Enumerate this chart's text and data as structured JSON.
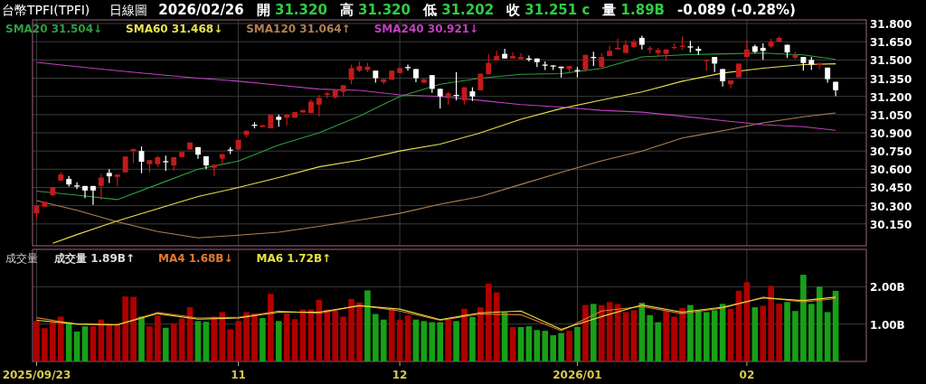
{
  "chart_data": [
    {
      "type": "candlestick",
      "title": "台幣TPFI(TPFI)",
      "subtitle": "日線圖",
      "annotations": [
        "2026/02/26",
        "開 31.320",
        "高 31.320",
        "低 31.202",
        "收 31.251 c",
        "量 1.89B",
        "-0.089 (-0.28%)"
      ],
      "categories": [
        "2025/09/23",
        null,
        null,
        null,
        null,
        null,
        null,
        null,
        null,
        null,
        null,
        null,
        null,
        null,
        null,
        null,
        null,
        null,
        null,
        null,
        null,
        null,
        null,
        null,
        null,
        "11",
        null,
        null,
        null,
        null,
        null,
        null,
        null,
        null,
        null,
        null,
        null,
        null,
        null,
        null,
        null,
        null,
        null,
        null,
        null,
        "12",
        null,
        null,
        null,
        null,
        null,
        null,
        null,
        null,
        null,
        null,
        null,
        null,
        null,
        null,
        null,
        null,
        null,
        null,
        null,
        null,
        null,
        "2026/01",
        null,
        null,
        null,
        null,
        null,
        null,
        null,
        null,
        null,
        null,
        null,
        null,
        null,
        null,
        null,
        null,
        null,
        null,
        null,
        null,
        "02",
        null,
        null,
        null,
        null,
        null,
        null,
        null,
        null,
        null,
        null,
        null
      ],
      "ohlc": [
        [
          30.237,
          30.3,
          30.187,
          30.3
        ],
        [
          30.292,
          30.335,
          30.29,
          30.332
        ],
        [
          30.387,
          30.45,
          30.38,
          30.45
        ],
        [
          30.507,
          30.575,
          30.505,
          30.557
        ],
        [
          30.52,
          30.545,
          30.457,
          30.475
        ],
        [
          30.467,
          30.492,
          30.437,
          30.462
        ],
        [
          30.462,
          30.462,
          30.362,
          30.425
        ],
        [
          30.462,
          30.462,
          30.307,
          30.425
        ],
        [
          30.462,
          30.562,
          30.35,
          30.532
        ],
        [
          30.57,
          30.6,
          30.487,
          30.542
        ],
        [
          30.537,
          30.557,
          30.462,
          30.557
        ],
        [
          30.575,
          30.705,
          30.575,
          30.705
        ],
        [
          30.75,
          30.767,
          30.65,
          30.767
        ],
        [
          30.75,
          30.787,
          30.567,
          30.662
        ],
        [
          30.642,
          30.675,
          30.575,
          30.675
        ],
        [
          30.642,
          30.71,
          30.62,
          30.7
        ],
        [
          30.667,
          30.712,
          30.587,
          30.665
        ],
        [
          30.632,
          30.7,
          30.587,
          30.7
        ],
        [
          30.7,
          30.745,
          30.7,
          30.742
        ],
        [
          30.762,
          30.82,
          30.762,
          30.82
        ],
        [
          30.782,
          30.782,
          30.687,
          30.72
        ],
        [
          30.707,
          30.707,
          30.6,
          30.632
        ],
        [
          30.612,
          30.637,
          30.542,
          30.637
        ],
        [
          30.687,
          30.725,
          30.642,
          30.725
        ],
        [
          30.762,
          30.782,
          30.725,
          30.757
        ],
        [
          30.762,
          30.842,
          30.762,
          30.842
        ],
        [
          30.882,
          30.917,
          30.862,
          30.917
        ],
        [
          30.967,
          30.987,
          30.937,
          30.962
        ],
        [
          30.947,
          30.965,
          30.947,
          30.962
        ],
        [
          30.937,
          31.05,
          30.937,
          31.05
        ],
        [
          31.032,
          31.05,
          30.95,
          31.007
        ],
        [
          31.025,
          31.05,
          30.962,
          31.05
        ],
        [
          31.025,
          31.07,
          31.025,
          31.07
        ],
        [
          31.067,
          31.087,
          31.067,
          31.087
        ],
        [
          31.062,
          31.175,
          31.062,
          31.157
        ],
        [
          31.132,
          31.212,
          31.032,
          31.187
        ],
        [
          31.212,
          31.237,
          31.187,
          31.225
        ],
        [
          31.192,
          31.257,
          31.18,
          31.257
        ],
        [
          31.237,
          31.292,
          31.2,
          31.292
        ],
        [
          31.337,
          31.462,
          31.3,
          31.432
        ],
        [
          31.412,
          31.487,
          31.4,
          31.45
        ],
        [
          31.417,
          31.475,
          31.4,
          31.445
        ],
        [
          31.412,
          31.412,
          31.312,
          31.35
        ],
        [
          31.317,
          31.342,
          31.3,
          31.342
        ],
        [
          31.337,
          31.412,
          31.337,
          31.412
        ],
        [
          31.392,
          31.44,
          31.392,
          31.432
        ],
        [
          31.442,
          31.462,
          31.412,
          31.44
        ],
        [
          31.425,
          31.425,
          31.317,
          31.35
        ],
        [
          31.312,
          31.342,
          31.312,
          31.342
        ],
        [
          31.375,
          31.375,
          31.23,
          31.262
        ],
        [
          31.262,
          31.262,
          31.1,
          31.2
        ],
        [
          31.2,
          31.237,
          31.132,
          31.225
        ],
        [
          31.212,
          31.4,
          31.167,
          31.21
        ],
        [
          31.167,
          31.275,
          31.132,
          31.275
        ],
        [
          31.242,
          31.275,
          31.162,
          31.2
        ],
        [
          31.25,
          31.387,
          31.25,
          31.387
        ],
        [
          31.382,
          31.55,
          31.382,
          31.475
        ],
        [
          31.495,
          31.575,
          31.495,
          31.532
        ],
        [
          31.55,
          31.592,
          31.512,
          31.512
        ],
        [
          31.512,
          31.562,
          31.512,
          31.532
        ],
        [
          31.507,
          31.557,
          31.507,
          31.525
        ],
        [
          31.512,
          31.537,
          31.487,
          31.51
        ],
        [
          31.512,
          31.512,
          31.442,
          31.482
        ],
        [
          31.462,
          31.487,
          31.417,
          31.46
        ],
        [
          31.455,
          31.455,
          31.417,
          31.454
        ],
        [
          31.445,
          31.445,
          31.355,
          31.432
        ],
        [
          31.425,
          31.45,
          31.387,
          31.45
        ],
        [
          31.417,
          31.442,
          31.357,
          31.415
        ],
        [
          31.417,
          31.542,
          31.4,
          31.542
        ],
        [
          31.525,
          31.567,
          31.45,
          31.52
        ],
        [
          31.442,
          31.557,
          31.437,
          31.525
        ],
        [
          31.532,
          31.617,
          31.532,
          31.575
        ],
        [
          31.587,
          31.675,
          31.587,
          31.6
        ],
        [
          31.557,
          31.662,
          31.557,
          31.625
        ],
        [
          31.607,
          31.67,
          31.6,
          31.65
        ],
        [
          31.682,
          31.7,
          31.587,
          31.625
        ],
        [
          31.595,
          31.617,
          31.557,
          31.595
        ],
        [
          31.557,
          31.6,
          31.532,
          31.582
        ],
        [
          31.55,
          31.587,
          31.492,
          31.587
        ],
        [
          31.607,
          31.637,
          31.587,
          31.607
        ],
        [
          31.617,
          31.692,
          31.582,
          31.617
        ],
        [
          31.612,
          31.657,
          31.562,
          31.61
        ],
        [
          31.592,
          31.612,
          31.542,
          31.575
        ],
        [
          31.492,
          31.5,
          31.412,
          31.5
        ],
        [
          31.525,
          31.525,
          31.4,
          31.47
        ],
        [
          31.425,
          31.425,
          31.282,
          31.325
        ],
        [
          31.3,
          31.332,
          31.267,
          31.332
        ],
        [
          31.357,
          31.47,
          31.357,
          31.47
        ],
        [
          31.525,
          31.662,
          31.525,
          31.587
        ],
        [
          31.612,
          31.625,
          31.557,
          31.567
        ],
        [
          31.6,
          31.637,
          31.5,
          31.575
        ],
        [
          31.612,
          31.675,
          31.6,
          31.65
        ],
        [
          31.65,
          31.692,
          31.65,
          31.682
        ],
        [
          31.625,
          31.625,
          31.517,
          31.562
        ],
        [
          31.517,
          31.567,
          31.507,
          31.542
        ],
        [
          31.525,
          31.525,
          31.412,
          31.475
        ],
        [
          31.5,
          31.525,
          31.417,
          31.462
        ],
        [
          31.457,
          31.475,
          31.425,
          31.475
        ],
        [
          31.437,
          31.437,
          31.312,
          31.342
        ],
        [
          31.32,
          31.32,
          31.202,
          31.251
        ]
      ],
      "ylim": [
        29.97,
        31.83
      ],
      "yticks": [
        {
          "value": 30.15,
          "label": "30.150"
        },
        {
          "value": 30.3,
          "label": "30.300"
        },
        {
          "value": 30.45,
          "label": "30.450"
        },
        {
          "value": 30.6,
          "label": "30.600"
        },
        {
          "value": 30.75,
          "label": "30.750"
        },
        {
          "value": 30.9,
          "label": "30.900"
        },
        {
          "value": 31.05,
          "label": "31.050"
        },
        {
          "value": 31.2,
          "label": "31.200"
        },
        {
          "value": 31.35,
          "label": "31.350"
        },
        {
          "value": 31.5,
          "label": "31.500"
        },
        {
          "value": 31.65,
          "label": "31.650"
        },
        {
          "value": 31.8,
          "label": "31.800"
        }
      ],
      "grid": true,
      "legend": "top left",
      "tick_labels": "y",
      "series": [
        {
          "name": "SMA20 31.504↓",
          "type": "line",
          "color": "#2e9e3e",
          "values": [
            30.42,
            null,
            null,
            null,
            null,
            30.387,
            null,
            null,
            null,
            null,
            30.35,
            null,
            null,
            null,
            null,
            30.475,
            null,
            null,
            null,
            null,
            30.6,
            null,
            null,
            null,
            null,
            30.667,
            null,
            null,
            null,
            null,
            30.8,
            null,
            null,
            null,
            null,
            30.9,
            null,
            null,
            null,
            null,
            31.037,
            null,
            null,
            null,
            null,
            31.2,
            null,
            null,
            null,
            null,
            31.3,
            null,
            null,
            null,
            null,
            31.35,
            null,
            null,
            null,
            null,
            31.382,
            null,
            null,
            null,
            null,
            31.387,
            null,
            null,
            null,
            null,
            31.43,
            null,
            null,
            null,
            null,
            31.525,
            null,
            null,
            null,
            null,
            31.542,
            null,
            null,
            null,
            null,
            31.55,
            null,
            null,
            null,
            null,
            31.557,
            null,
            null,
            null,
            null,
            31.542,
            null,
            null,
            null,
            31.504
          ]
        },
        {
          "name": "SMA60 31.468↓",
          "type": "line",
          "color": "#e8e050",
          "values": [
            null,
            null,
            29.99,
            null,
            null,
            30.062,
            null,
            null,
            null,
            null,
            30.175,
            null,
            null,
            null,
            null,
            30.275,
            null,
            null,
            null,
            null,
            30.375,
            null,
            null,
            null,
            null,
            30.45,
            null,
            null,
            null,
            null,
            30.532,
            null,
            null,
            null,
            null,
            30.62,
            null,
            null,
            null,
            null,
            30.675,
            null,
            null,
            null,
            null,
            30.75,
            null,
            null,
            null,
            null,
            30.807,
            null,
            null,
            null,
            null,
            30.9,
            null,
            null,
            null,
            null,
            31.012,
            null,
            null,
            null,
            null,
            31.1,
            null,
            null,
            null,
            null,
            31.17,
            null,
            null,
            null,
            null,
            31.237,
            null,
            null,
            null,
            null,
            31.325,
            null,
            null,
            null,
            null,
            31.392,
            null,
            null,
            null,
            null,
            31.432,
            null,
            null,
            null,
            null,
            31.462,
            null,
            null,
            null,
            31.468
          ]
        },
        {
          "name": "SMA120 31.064↑",
          "type": "line",
          "color": "#b08050",
          "values": [
            30.342,
            null,
            null,
            null,
            null,
            30.262,
            null,
            null,
            null,
            null,
            30.167,
            null,
            null,
            null,
            null,
            30.087,
            null,
            null,
            null,
            null,
            30.035,
            null,
            null,
            null,
            null,
            30.057,
            null,
            null,
            null,
            null,
            30.082,
            null,
            null,
            null,
            null,
            30.13,
            null,
            null,
            null,
            null,
            30.182,
            null,
            null,
            null,
            null,
            30.237,
            null,
            null,
            null,
            null,
            30.312,
            null,
            null,
            null,
            null,
            30.375,
            null,
            null,
            null,
            null,
            30.475,
            null,
            null,
            null,
            null,
            30.575,
            null,
            null,
            null,
            null,
            30.67,
            null,
            null,
            null,
            null,
            30.75,
            null,
            null,
            null,
            null,
            30.857,
            null,
            null,
            null,
            null,
            30.917,
            null,
            null,
            null,
            null,
            30.982,
            null,
            null,
            null,
            null,
            31.032,
            null,
            null,
            null,
            31.064
          ]
        },
        {
          "name": "SMA240 30.921↓",
          "type": "line",
          "color": "#c040c0",
          "values": [
            31.48,
            null,
            null,
            null,
            null,
            31.445,
            null,
            null,
            null,
            null,
            31.412,
            null,
            null,
            null,
            null,
            31.38,
            null,
            null,
            null,
            null,
            31.35,
            null,
            null,
            null,
            null,
            31.325,
            null,
            null,
            null,
            null,
            31.292,
            null,
            null,
            null,
            null,
            31.26,
            null,
            null,
            null,
            null,
            31.25,
            null,
            null,
            null,
            null,
            31.212,
            null,
            null,
            null,
            null,
            31.2,
            null,
            null,
            null,
            null,
            31.167,
            null,
            null,
            null,
            null,
            31.132,
            null,
            null,
            null,
            null,
            31.112,
            null,
            null,
            null,
            null,
            31.085,
            null,
            null,
            null,
            null,
            31.07,
            null,
            null,
            null,
            null,
            31.037,
            null,
            null,
            null,
            null,
            31.0,
            null,
            null,
            null,
            null,
            30.967,
            null,
            null,
            null,
            null,
            30.95,
            null,
            null,
            null,
            30.921
          ]
        }
      ]
    },
    {
      "type": "bar",
      "title": "成交量",
      "annotations": [
        "成交量 1.89B↑"
      ],
      "categories": [
        "2025/09/23",
        null,
        null,
        null,
        null,
        null,
        null,
        null,
        null,
        null,
        null,
        null,
        null,
        null,
        null,
        null,
        null,
        null,
        null,
        null,
        null,
        null,
        null,
        null,
        null,
        "11",
        null,
        null,
        null,
        null,
        null,
        null,
        null,
        null,
        null,
        null,
        null,
        null,
        null,
        null,
        null,
        null,
        null,
        null,
        null,
        "12",
        null,
        null,
        null,
        null,
        null,
        null,
        null,
        null,
        null,
        null,
        null,
        null,
        null,
        null,
        null,
        null,
        null,
        null,
        null,
        null,
        null,
        "2026/01",
        null,
        null,
        null,
        null,
        null,
        null,
        null,
        null,
        null,
        null,
        null,
        null,
        null,
        null,
        null,
        null,
        null,
        null,
        null,
        null,
        "02",
        null,
        null,
        null,
        null,
        null,
        null,
        null,
        null,
        null,
        null,
        null
      ],
      "ylim": [
        0,
        3
      ],
      "yticks": [
        {
          "value": 1,
          "label": "1.00B"
        },
        {
          "value": 2,
          "label": "2.00B"
        }
      ],
      "grid": true,
      "legend": "top left",
      "series": [
        {
          "type": "bar",
          "values": [
            1.08,
            0.89,
            1.05,
            1.2,
            1.05,
            0.8,
            0.94,
            0.94,
            1.12,
            1.02,
            1.02,
            1.74,
            1.73,
            1.2,
            0.94,
            1.23,
            0.9,
            1.02,
            1.15,
            1.45,
            1.08,
            1.06,
            1.2,
            1.32,
            0.86,
            1.08,
            1.32,
            1.28,
            1.16,
            1.81,
            1.08,
            1.28,
            1.13,
            1.39,
            1.39,
            1.65,
            1.39,
            1.37,
            1.2,
            1.67,
            1.58,
            1.9,
            1.27,
            1.12,
            1.41,
            1.12,
            1.23,
            1.12,
            1.08,
            1.05,
            1.05,
            1.12,
            1.08,
            1.41,
            1.19,
            1.45,
            2.08,
            1.85,
            1.32,
            0.92,
            0.92,
            0.94,
            0.84,
            0.82,
            0.7,
            0.76,
            0.82,
            0.92,
            1.51,
            1.54,
            1.51,
            1.59,
            1.54,
            1.32,
            1.37,
            1.57,
            1.24,
            1.05,
            1.35,
            1.2,
            1.43,
            1.51,
            1.37,
            1.32,
            1.37,
            1.54,
            1.41,
            1.89,
            2.12,
            1.45,
            1.49,
            2.02,
            1.55,
            1.59,
            1.35,
            2.32,
            1.54,
            2.0,
            1.32,
            1.89
          ],
          "colors": [
            "#b00000",
            "#b00000",
            "#b00000",
            "#b00000",
            "#18a018",
            "#18a018",
            "#18a018",
            "#b00000",
            "#b00000",
            "#b00000",
            "#b00000",
            "#b00000",
            "#b00000",
            "#18a018",
            "#b00000",
            "#b00000",
            "#18a018",
            "#b00000",
            "#b00000",
            "#b00000",
            "#18a018",
            "#18a018",
            "#b00000",
            "#b00000",
            "#b00000",
            "#b00000",
            "#b00000",
            "#b00000",
            "#18a018",
            "#b00000",
            "#18a018",
            "#b00000",
            "#b00000",
            "#b00000",
            "#b00000",
            "#b00000",
            "#b00000",
            "#b00000",
            "#b00000",
            "#b00000",
            "#b00000",
            "#18a018",
            "#18a018",
            "#18a018",
            "#b00000",
            "#b00000",
            "#b00000",
            "#18a018",
            "#18a018",
            "#18a018",
            "#18a018",
            "#b00000",
            "#18a018",
            "#b00000",
            "#18a018",
            "#b00000",
            "#b00000",
            "#b00000",
            "#18a018",
            "#b00000",
            "#18a018",
            "#18a018",
            "#18a018",
            "#18a018",
            "#18a018",
            "#18a018",
            "#b00000",
            "#18a018",
            "#b00000",
            "#18a018",
            "#b00000",
            "#b00000",
            "#b00000",
            "#b00000",
            "#b00000",
            "#18a018",
            "#18a018",
            "#18a018",
            "#b00000",
            "#b00000",
            "#b00000",
            "#18a018",
            "#18a018",
            "#18a018",
            "#18a018",
            "#18a018",
            "#b00000",
            "#b00000",
            "#b00000",
            "#18a018",
            "#b00000",
            "#b00000",
            "#b00000",
            "#18a018",
            "#18a018",
            "#18a018",
            "#18a018",
            "#18a018",
            "#18a018",
            "#18a018"
          ]
        },
        {
          "name": "MA4 1.68B↓",
          "type": "line",
          "color": "#e07a30",
          "values": [
            1.17,
            null,
            null,
            null,
            null,
            1.0,
            null,
            null,
            null,
            null,
            0.98,
            null,
            null,
            null,
            null,
            1.31,
            null,
            null,
            null,
            null,
            1.16,
            null,
            null,
            null,
            null,
            1.18,
            null,
            null,
            null,
            null,
            1.35,
            null,
            null,
            null,
            null,
            1.29,
            null,
            null,
            null,
            null,
            1.5,
            null,
            null,
            null,
            null,
            1.35,
            null,
            null,
            null,
            null,
            1.1,
            null,
            null,
            null,
            null,
            1.27,
            null,
            null,
            null,
            null,
            1.25,
            null,
            null,
            null,
            null,
            0.82,
            null,
            null,
            null,
            null,
            1.35,
            null,
            null,
            null,
            null,
            1.47,
            null,
            null,
            null,
            null,
            1.28,
            null,
            null,
            null,
            null,
            1.43,
            null,
            null,
            null,
            null,
            1.72,
            null,
            null,
            null,
            null,
            1.59,
            null,
            null,
            null,
            1.68
          ]
        },
        {
          "name": "MA6 1.72B↑",
          "type": "line",
          "color": "#e8e040",
          "values": [
            1.1,
            null,
            null,
            null,
            null,
            1.0,
            null,
            null,
            null,
            null,
            0.98,
            null,
            null,
            null,
            null,
            1.28,
            null,
            null,
            null,
            null,
            1.13,
            null,
            null,
            null,
            null,
            1.16,
            null,
            null,
            null,
            null,
            1.32,
            null,
            null,
            null,
            null,
            1.32,
            null,
            null,
            null,
            null,
            1.49,
            null,
            null,
            null,
            null,
            1.4,
            null,
            null,
            null,
            null,
            1.12,
            null,
            null,
            null,
            null,
            1.3,
            null,
            null,
            null,
            null,
            1.35,
            null,
            null,
            null,
            null,
            0.86,
            null,
            null,
            null,
            null,
            1.2,
            null,
            null,
            null,
            null,
            1.51,
            null,
            null,
            null,
            null,
            1.32,
            null,
            null,
            null,
            null,
            1.45,
            null,
            null,
            null,
            null,
            1.7,
            null,
            null,
            null,
            null,
            1.63,
            null,
            null,
            null,
            1.72
          ]
        }
      ]
    }
  ]
}
